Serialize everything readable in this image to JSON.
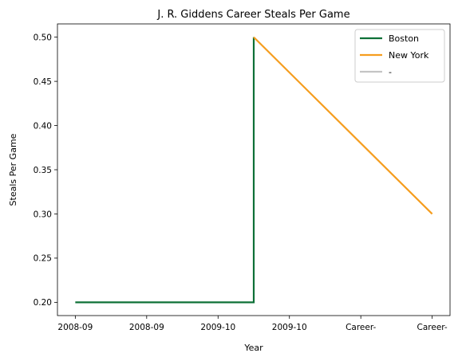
{
  "chart_data": {
    "type": "line",
    "title": "J. R. Giddens Career Steals Per Game",
    "xlabel": "Year",
    "ylabel": "Steals Per Game",
    "x_tick_labels": [
      "2008-09",
      "2008-09",
      "2009-10",
      "2009-10",
      "Career-",
      "Career-"
    ],
    "ylim": [
      0.185,
      0.515
    ],
    "y_ticks": [
      0.2,
      0.25,
      0.3,
      0.35,
      0.4,
      0.45,
      0.5
    ],
    "y_tick_labels": [
      "0.20",
      "0.25",
      "0.30",
      "0.35",
      "0.40",
      "0.45",
      "0.50"
    ],
    "xlim": [
      -0.25,
      5.25
    ],
    "legend_position": "top-right",
    "grid": false,
    "series": [
      {
        "name": "Boston",
        "color": "#0e7037",
        "points": [
          [
            0,
            0.2
          ],
          [
            2.5,
            0.2
          ],
          [
            2.5,
            0.5
          ]
        ]
      },
      {
        "name": "New York",
        "color": "#f59d1e",
        "points": [
          [
            2.5,
            0.5
          ],
          [
            5,
            0.3
          ]
        ]
      },
      {
        "name": "-",
        "color": "#c4c4c4",
        "points": []
      }
    ]
  }
}
